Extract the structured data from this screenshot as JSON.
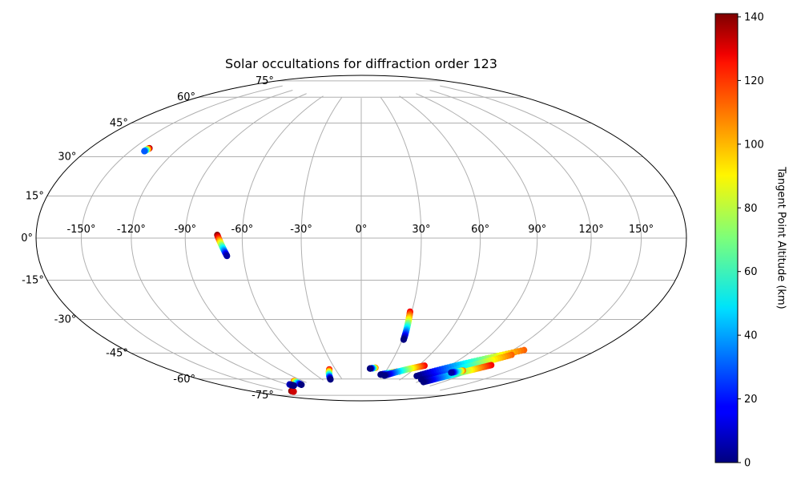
{
  "chart_data": {
    "type": "scatter",
    "projection": "hammer",
    "title": "Solar occultations for diffraction order 123",
    "x_ticks": [
      "-150°",
      "-120°",
      "-90°",
      "-60°",
      "-30°",
      "0°",
      "30°",
      "60°",
      "90°",
      "120°",
      "150°"
    ],
    "y_ticks": [
      "75°",
      "60°",
      "45°",
      "30°",
      "15°",
      "0°",
      "-15°",
      "-30°",
      "-45°",
      "-60°",
      "-75°"
    ],
    "x_tick_values": [
      -150,
      -120,
      -90,
      -60,
      -30,
      0,
      30,
      60,
      90,
      120,
      150
    ],
    "y_tick_values": [
      75,
      60,
      45,
      30,
      15,
      0,
      -15,
      -30,
      -45,
      -60,
      -75
    ],
    "xlim": [
      -180,
      180
    ],
    "ylim": [
      -90,
      90
    ],
    "grid": true,
    "colorbar": {
      "label": "Tangent Point Altitude (km)",
      "range": [
        0,
        141
      ],
      "ticks": [
        "0",
        "20",
        "40",
        "60",
        "80",
        "100",
        "120",
        "140"
      ],
      "tick_values": [
        0,
        20,
        40,
        60,
        80,
        100,
        120,
        140
      ],
      "colormap": "jet"
    },
    "tracks": [
      {
        "lon_start": -139.5,
        "lat_start": 38.5,
        "alt_start": 141,
        "lon_end": -140.5,
        "lat_end": 37.0,
        "alt_end": 30
      },
      {
        "lon_start": -73.0,
        "lat_start": 1.5,
        "alt_start": 141,
        "lon_end": -68.5,
        "lat_end": -8.5,
        "alt_end": 5
      },
      {
        "lon_start": 29.0,
        "lat_start": -37.0,
        "alt_start": 125,
        "lon_end": 31.0,
        "lat_end": -52.0,
        "alt_end": 0
      },
      {
        "lon_start": -37.0,
        "lat_start": -69.0,
        "alt_start": 125,
        "lon_end": -48.0,
        "lat_end": -75.0,
        "alt_end": 0
      },
      {
        "lon_start": 46.0,
        "lat_start": -70.0,
        "alt_start": 135,
        "lon_end": 26.0,
        "lat_end": -72.5,
        "alt_end": 0
      },
      {
        "lon_start": 66.0,
        "lat_start": -65.5,
        "alt_start": 125,
        "lon_end": 32.0,
        "lat_end": -73.0,
        "alt_end": 0
      },
      {
        "lon_start": 128.0,
        "lat_start": -51.0,
        "alt_start": 110,
        "lon_end": 74.0,
        "lat_end": -71.5,
        "alt_end": 0
      },
      {
        "lon_start": 125.0,
        "lat_start": -54.0,
        "alt_start": 110,
        "lon_end": 88.0,
        "lat_end": -73.0,
        "alt_end": 0
      },
      {
        "lon_start": 125.0,
        "lat_start": -60.0,
        "alt_start": 125,
        "lon_end": 98.0,
        "lat_end": -74.0,
        "alt_end": 0
      },
      {
        "lon_start": 111.0,
        "lat_start": -65.0,
        "alt_start": 110,
        "lon_end": 104.0,
        "lat_end": -67.0,
        "alt_end": 5
      },
      {
        "lon_start": 16.0,
        "lat_start": -68.5,
        "alt_start": 110,
        "lon_end": 10.0,
        "lat_end": -69.0,
        "alt_end": 0
      },
      {
        "lon_start": -101.0,
        "lat_start": -73.0,
        "alt_start": 110,
        "lon_end": -104.0,
        "lat_end": -75.5,
        "alt_end": 0
      },
      {
        "lon_start": -144.5,
        "lat_start": -76.5,
        "alt_start": 141,
        "lon_end": -145.0,
        "lat_end": -77.0,
        "alt_end": 130
      },
      {
        "lon_start": -117.5,
        "lat_start": -74.0,
        "alt_start": 10,
        "lon_end": -117.0,
        "lat_end": -75.0,
        "alt_end": 0
      }
    ]
  }
}
